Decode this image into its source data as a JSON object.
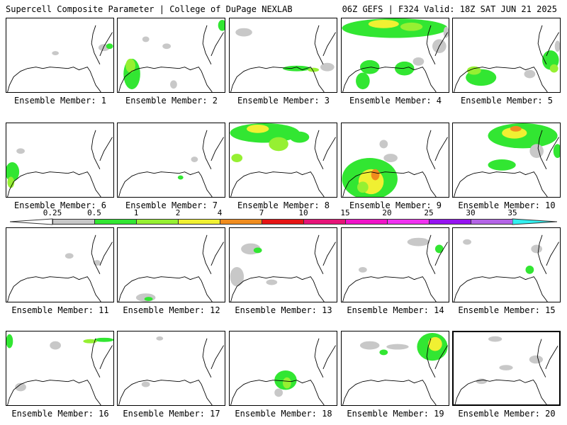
{
  "header": {
    "title": "Supercell Composite Parameter | College of DuPage NEXLAB",
    "run_info": "06Z GEFS | F324 Valid: 18Z SAT JUN 21 2025"
  },
  "colorbar": {
    "labels": [
      "0.25",
      "0.5",
      "1",
      "2",
      "4",
      "7",
      "10",
      "15",
      "20",
      "25",
      "30",
      "35"
    ],
    "colors": [
      "#c8c8c8",
      "#32e632",
      "#96f032",
      "#f0f032",
      "#f08c1e",
      "#e61414",
      "#e61478",
      "#f014c8",
      "#f032f0",
      "#9614f0",
      "#b464e6",
      "#32f0f0"
    ]
  },
  "members": [
    {
      "label": "Ensemble Member: 1",
      "selected": false
    },
    {
      "label": "Ensemble Member: 2",
      "selected": false
    },
    {
      "label": "Ensemble Member: 3",
      "selected": false
    },
    {
      "label": "Ensemble Member: 4",
      "selected": false
    },
    {
      "label": "Ensemble Member: 5",
      "selected": false
    },
    {
      "label": "Ensemble Member: 6",
      "selected": false
    },
    {
      "label": "Ensemble Member: 7",
      "selected": false
    },
    {
      "label": "Ensemble Member: 8",
      "selected": false
    },
    {
      "label": "Ensemble Member: 9",
      "selected": false
    },
    {
      "label": "Ensemble Member: 10",
      "selected": false
    },
    {
      "label": "Ensemble Member: 11",
      "selected": false
    },
    {
      "label": "Ensemble Member: 12",
      "selected": false
    },
    {
      "label": "Ensemble Member: 13",
      "selected": false
    },
    {
      "label": "Ensemble Member: 14",
      "selected": false
    },
    {
      "label": "Ensemble Member: 15",
      "selected": false
    },
    {
      "label": "Ensemble Member: 16",
      "selected": false
    },
    {
      "label": "Ensemble Member: 17",
      "selected": false
    },
    {
      "label": "Ensemble Member: 18",
      "selected": false
    },
    {
      "label": "Ensemble Member: 19",
      "selected": false
    },
    {
      "label": "Ensemble Member: 20",
      "selected": true
    }
  ]
}
